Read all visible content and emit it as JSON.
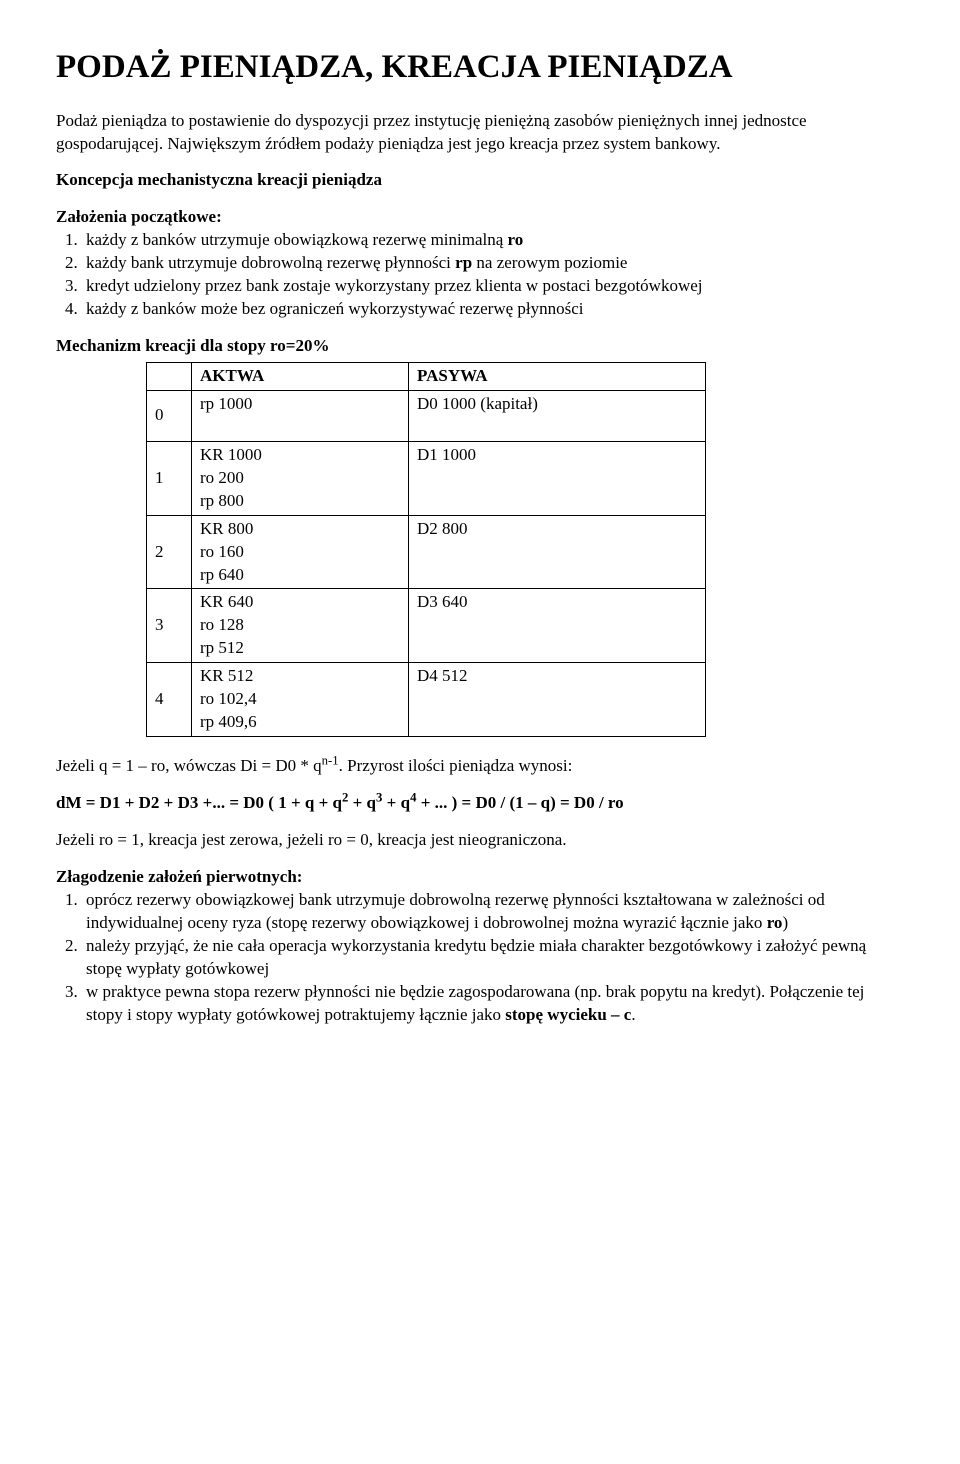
{
  "title": "PODAŻ PIENIĄDZA, KREACJA PIENIĄDZA",
  "intro": "Podaż pieniądza to postawienie do dyspozycji przez instytucję pieniężną zasobów pieniężnych innej jednostce gospodarującej. Największym źródłem podaży pieniądza jest jego kreacja przez system bankowy.",
  "section1_title": "Koncepcja mechanistyczna kreacji pieniądza",
  "assumptions_heading": "Założenia początkowe:",
  "assumptions": [
    "każdy z banków utrzymuje obowiązkową rezerwę minimalną ",
    "każdy bank utrzymuje dobrowolną rezerwę płynności ",
    " na zerowym poziomie",
    "kredyt udzielony przez bank zostaje wykorzystany przez klienta w postaci bezgotówkowej",
    "każdy z banków może bez ograniczeń wykorzystywać rezerwę płynności"
  ],
  "assump_bold": {
    "ro": "ro",
    "rp": "rp"
  },
  "mechanism_heading": "Mechanizm kreacji dla stopy ro=20%",
  "table": {
    "headers": {
      "aktywa": "AKTWA",
      "pasywa": "PASYWA"
    },
    "rows": [
      {
        "idx": "0",
        "aktywa": "rp 1000",
        "pasywa": "D0 1000 (kapitał)"
      },
      {
        "idx": "1",
        "aktywa": "KR 1000\nro 200\nrp 800",
        "pasywa": "D1 1000"
      },
      {
        "idx": "2",
        "aktywa": "KR 800\nro 160\nrp 640",
        "pasywa": "D2  800"
      },
      {
        "idx": "3",
        "aktywa": "KR 640\nro 128\nrp 512",
        "pasywa": "D3  640"
      },
      {
        "idx": "4",
        "aktywa": "KR 512\nro 102,4\nrp 409,6",
        "pasywa": "D4  512"
      }
    ]
  },
  "formula_line1_a": "Jeżeli q = 1 – ro, wówczas Di = D0 * q",
  "formula_line1_exp": "n-1",
  "formula_line1_b": ". Przyrost ilości pieniądza wynosi:",
  "formula_line2_a": "dM = D1 + D2 + D3 +... = D0 ( 1 + q + q",
  "formula_line2_e2": "2",
  "formula_line2_b": " + q",
  "formula_line2_e3": "3",
  "formula_line2_c": " + q",
  "formula_line2_e4": "4",
  "formula_line2_d": " + ... ) = D0 / (1 – q) = D0 / ro",
  "limits_line": "Jeżeli ro = 1, kreacja jest zerowa, jeżeli ro = 0, kreacja jest nieograniczona.",
  "relax_heading": "Złagodzenie założeń pierwotnych:",
  "relax": {
    "item1_a": "oprócz rezerwy obowiązkowej bank utrzymuje dobrowolną rezerwę płynności kształtowana w zależności od indywidualnej oceny ryza (stopę rezerwy obowiązkowej i dobrowolnej można wyrazić łącznie jako ",
    "item1_bold": "ro",
    "item1_b": ")",
    "item2": "należy przyjąć, że nie cała operacja wykorzystania kredytu będzie miała charakter bezgotówkowy i założyć pewną stopę wypłaty gotówkowej",
    "item3_a": "w praktyce pewna stopa rezerw płynności nie będzie zagospodarowana (np. brak popytu na kredyt). Połączenie tej stopy i stopy wypłaty gotówkowej potraktujemy łącznie jako ",
    "item3_bold": "stopę wycieku – c",
    "item3_b": "."
  }
}
